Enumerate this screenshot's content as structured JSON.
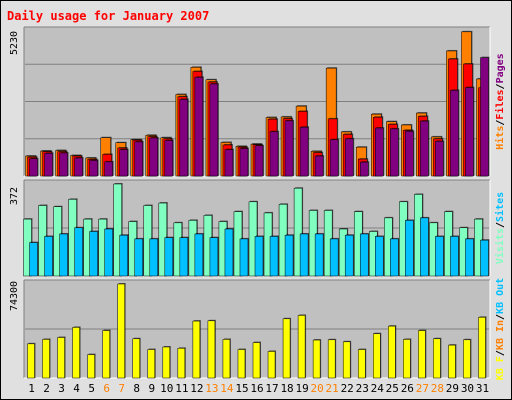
{
  "title": "Daily usage for January 2007",
  "colors": {
    "hits": "#ff8000",
    "files": "#ff0000",
    "pages": "#800080",
    "visits": "#80ffc0",
    "sites": "#00c0ff",
    "kbin": "#ff8000",
    "kbout": "#00c0ff",
    "kb": "#ffff00",
    "weekend": "#ff8000",
    "weekday": "#000000"
  },
  "panels": {
    "hits": {
      "max_label": "5230",
      "legend": [
        {
          "text": "Hits",
          "color": "#ff8000"
        },
        {
          "text": "/",
          "color": "#000000"
        },
        {
          "text": "Files",
          "color": "#ff0000"
        },
        {
          "text": "/",
          "color": "#000000"
        },
        {
          "text": "Pages",
          "color": "#800080"
        }
      ]
    },
    "visits": {
      "max_label": "372",
      "legend": [
        {
          "text": "Visits",
          "color": "#80ffc0"
        },
        {
          "text": "/",
          "color": "#000000"
        },
        {
          "text": "Sites",
          "color": "#00c0ff"
        }
      ]
    },
    "kb": {
      "max_label": "74300",
      "legend": [
        {
          "text": "KB F",
          "color": "#ffff00"
        },
        {
          "text": "/",
          "color": "#000000"
        },
        {
          "text": "KB In",
          "color": "#ff8000"
        },
        {
          "text": "/",
          "color": "#000000"
        },
        {
          "text": "KB Out",
          "color": "#00c0ff"
        }
      ]
    }
  },
  "chart_data": {
    "type": "bar",
    "title": "Daily usage for January 2007",
    "categories": [
      "1",
      "2",
      "3",
      "4",
      "5",
      "6",
      "7",
      "8",
      "9",
      "10",
      "11",
      "12",
      "13",
      "14",
      "15",
      "16",
      "17",
      "18",
      "19",
      "20",
      "21",
      "22",
      "23",
      "24",
      "25",
      "26",
      "27",
      "28",
      "29",
      "30",
      "31"
    ],
    "weekend_days": [
      "6",
      "7",
      "13",
      "14",
      "20",
      "21",
      "27",
      "28"
    ],
    "panels": [
      {
        "name": "hits",
        "ymax": 5230,
        "series": [
          {
            "name": "Hits",
            "values": [
              720,
              900,
              920,
              740,
              650,
              1380,
              1200,
              1310,
              1470,
              1380,
              2940,
              3920,
              3470,
              1210,
              1070,
              1150,
              2110,
              2130,
              2520,
              890,
              3890,
              1590,
              1040,
              2230,
              1960,
              1840,
              2270,
              1410,
              4510,
              5200,
              3500
            ]
          },
          {
            "name": "Files",
            "values": [
              680,
              880,
              880,
              720,
              600,
              780,
              1010,
              1290,
              1420,
              1340,
              2860,
              3770,
              3390,
              1120,
              1040,
              1130,
              2050,
              2070,
              2330,
              840,
              2060,
              1500,
              610,
              2120,
              1860,
              1650,
              2150,
              1340,
              4220,
              4040,
              3180
            ]
          },
          {
            "name": "Pages",
            "values": [
              620,
              820,
              830,
              650,
              560,
              510,
              950,
              1230,
              1370,
              1280,
              2760,
              3560,
              3320,
              950,
              990,
              1090,
              1600,
              1990,
              1760,
              720,
              1310,
              1340,
              500,
              1730,
              1700,
              1610,
              1980,
              1250,
              3090,
              3190,
              4270
            ]
          }
        ]
      },
      {
        "name": "visits",
        "ymax": 372,
        "series": [
          {
            "name": "Visits",
            "values": [
              230,
              285,
              280,
              310,
              230,
              230,
              372,
              220,
              285,
              295,
              215,
              225,
              245,
              220,
              260,
              300,
              255,
              290,
              355,
              265,
              265,
              190,
              260,
              180,
              235,
              300,
              330,
              215,
              260,
              195,
              230
            ]
          },
          {
            "name": "Sites",
            "values": [
              135,
              160,
              170,
              195,
              180,
              190,
              165,
              150,
              150,
              155,
              155,
              170,
              155,
              190,
              150,
              160,
              160,
              165,
              170,
              170,
              150,
              165,
              170,
              160,
              150,
              225,
              235,
              160,
              160,
              150,
              145
            ]
          }
        ]
      },
      {
        "name": "kb",
        "ymax": 74300,
        "series": [
          {
            "name": "KB F",
            "values": [
              27000,
              30500,
              32000,
              40000,
              18500,
              37500,
              74300,
              31000,
              22500,
              24500,
              23500,
              45000,
              45200,
              30500,
              22500,
              28000,
              21000,
              46800,
              49500,
              30000,
              30200,
              28600,
              22500,
              35000,
              41000,
              30500,
              37500,
              31000,
              26000,
              30200,
              48000
            ]
          }
        ]
      }
    ]
  }
}
